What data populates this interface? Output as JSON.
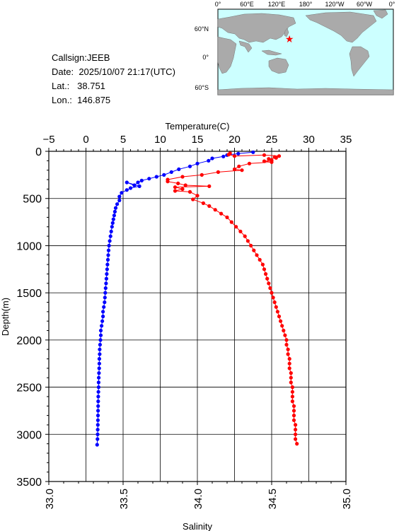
{
  "info": {
    "callsign": "Callsign:JEEB",
    "date_label": "Date:",
    "date_value": "2025/10/07 21:17(UTC)",
    "lat_label": "Lat.:",
    "lat_value": "38.751",
    "lon_label": "Lon.:",
    "lon_value": "146.875"
  },
  "map": {
    "lon_ticks": [
      "0°",
      "60°E",
      "120°E",
      "180°",
      "120°W",
      "60°W",
      "0°"
    ],
    "lat_ticks": [
      "60°N",
      "0°",
      "60°S"
    ],
    "station_marker": {
      "lat": 38.751,
      "lon": 146.875,
      "color": "#ff0000"
    },
    "ocean_color": "#ccffff",
    "land_color": "#aaaaaa"
  },
  "chart_data": {
    "type": "line",
    "top_axis_label": "Temperature(C)",
    "bottom_axis_label": "Salinity",
    "left_axis_label": "Depth(m)",
    "temperature_range": [
      -5,
      35
    ],
    "temperature_ticks": [
      "−5",
      "0",
      "5",
      "10",
      "15",
      "20",
      "25",
      "30",
      "35"
    ],
    "salinity_range": [
      33.0,
      35.0
    ],
    "salinity_ticks": [
      "33.0",
      "33.5",
      "34.0",
      "34.5",
      "35.0"
    ],
    "depth_range": [
      0,
      3500
    ],
    "depth_ticks": [
      "0",
      "500",
      "1000",
      "1500",
      "2000",
      "2500",
      "3000",
      "3500"
    ],
    "grid": true,
    "series": [
      {
        "quantity": "temperature",
        "color": "#0000ff",
        "points": [
          [
            22.5,
            10
          ],
          [
            20.5,
            25
          ],
          [
            19.0,
            40
          ],
          [
            18.5,
            55
          ],
          [
            17.0,
            75
          ],
          [
            16.5,
            100
          ],
          [
            15.0,
            130
          ],
          [
            14.0,
            160
          ],
          [
            12.5,
            190
          ],
          [
            11.5,
            220
          ],
          [
            10.5,
            250
          ],
          [
            9.5,
            270
          ],
          [
            8.5,
            290
          ],
          [
            7.5,
            310
          ],
          [
            7.0,
            330
          ],
          [
            6.5,
            360
          ],
          [
            5.5,
            330
          ],
          [
            7.2,
            370
          ],
          [
            6.0,
            390
          ],
          [
            5.5,
            410
          ],
          [
            4.8,
            440
          ],
          [
            4.5,
            480
          ],
          [
            4.5,
            520
          ],
          [
            4.2,
            560
          ],
          [
            4.0,
            600
          ],
          [
            3.9,
            640
          ],
          [
            3.8,
            680
          ],
          [
            3.7,
            720
          ],
          [
            3.6,
            760
          ],
          [
            3.5,
            800
          ],
          [
            3.4,
            850
          ],
          [
            3.3,
            900
          ],
          [
            3.2,
            950
          ],
          [
            3.1,
            1000
          ],
          [
            3.05,
            1050
          ],
          [
            3.0,
            1100
          ],
          [
            2.95,
            1150
          ],
          [
            2.9,
            1200
          ],
          [
            2.85,
            1250
          ],
          [
            2.8,
            1300
          ],
          [
            2.75,
            1350
          ],
          [
            2.7,
            1400
          ],
          [
            2.65,
            1450
          ],
          [
            2.6,
            1500
          ],
          [
            2.55,
            1550
          ],
          [
            2.5,
            1600
          ],
          [
            2.4,
            1650
          ],
          [
            2.3,
            1700
          ],
          [
            2.3,
            1750
          ],
          [
            2.2,
            1800
          ],
          [
            2.1,
            1850
          ],
          [
            2.0,
            1900
          ],
          [
            2.0,
            1950
          ],
          [
            1.95,
            2000
          ],
          [
            1.9,
            2050
          ],
          [
            1.85,
            2100
          ],
          [
            1.85,
            2150
          ],
          [
            1.8,
            2200
          ],
          [
            1.8,
            2250
          ],
          [
            1.78,
            2300
          ],
          [
            1.75,
            2350
          ],
          [
            1.72,
            2400
          ],
          [
            1.7,
            2450
          ],
          [
            1.7,
            2500
          ],
          [
            1.68,
            2550
          ],
          [
            1.66,
            2600
          ],
          [
            1.65,
            2650
          ],
          [
            1.64,
            2700
          ],
          [
            1.63,
            2750
          ],
          [
            1.62,
            2800
          ],
          [
            1.61,
            2850
          ],
          [
            1.6,
            2900
          ],
          [
            1.58,
            2950
          ],
          [
            1.57,
            3000
          ],
          [
            1.55,
            3050
          ],
          [
            1.5,
            3110
          ]
        ]
      },
      {
        "quantity": "salinity",
        "color": "#ff0000",
        "points": [
          [
            34.22,
            20
          ],
          [
            34.21,
            35
          ],
          [
            34.25,
            50
          ],
          [
            34.45,
            40
          ],
          [
            34.55,
            50
          ],
          [
            34.52,
            60
          ],
          [
            34.53,
            70
          ],
          [
            34.48,
            80
          ],
          [
            34.5,
            95
          ],
          [
            34.45,
            105
          ],
          [
            34.5,
            115
          ],
          [
            34.35,
            130
          ],
          [
            34.28,
            160
          ],
          [
            34.25,
            190
          ],
          [
            34.3,
            200
          ],
          [
            34.14,
            220
          ],
          [
            34.03,
            250
          ],
          [
            33.9,
            270
          ],
          [
            33.8,
            300
          ],
          [
            33.8,
            320
          ],
          [
            33.87,
            340
          ],
          [
            33.92,
            360
          ],
          [
            34.08,
            370
          ],
          [
            33.85,
            380
          ],
          [
            33.9,
            400
          ],
          [
            33.85,
            420
          ],
          [
            33.95,
            430
          ],
          [
            34.0,
            470
          ],
          [
            33.97,
            510
          ],
          [
            34.04,
            550
          ],
          [
            34.08,
            580
          ],
          [
            34.12,
            620
          ],
          [
            34.16,
            660
          ],
          [
            34.2,
            700
          ],
          [
            34.23,
            750
          ],
          [
            34.26,
            800
          ],
          [
            34.29,
            850
          ],
          [
            34.32,
            900
          ],
          [
            34.34,
            950
          ],
          [
            34.36,
            1000
          ],
          [
            34.38,
            1050
          ],
          [
            34.4,
            1100
          ],
          [
            34.42,
            1150
          ],
          [
            34.44,
            1200
          ],
          [
            34.45,
            1250
          ],
          [
            34.46,
            1300
          ],
          [
            34.47,
            1350
          ],
          [
            34.48,
            1400
          ],
          [
            34.49,
            1450
          ],
          [
            34.5,
            1500
          ],
          [
            34.51,
            1550
          ],
          [
            34.52,
            1600
          ],
          [
            34.53,
            1650
          ],
          [
            34.54,
            1700
          ],
          [
            34.55,
            1750
          ],
          [
            34.56,
            1800
          ],
          [
            34.57,
            1850
          ],
          [
            34.58,
            1900
          ],
          [
            34.59,
            1950
          ],
          [
            34.6,
            2000
          ],
          [
            34.6,
            2050
          ],
          [
            34.61,
            2100
          ],
          [
            34.61,
            2150
          ],
          [
            34.62,
            2200
          ],
          [
            34.62,
            2250
          ],
          [
            34.62,
            2300
          ],
          [
            34.63,
            2350
          ],
          [
            34.63,
            2400
          ],
          [
            34.63,
            2450
          ],
          [
            34.64,
            2500
          ],
          [
            34.64,
            2550
          ],
          [
            34.64,
            2600
          ],
          [
            34.64,
            2650
          ],
          [
            34.65,
            2700
          ],
          [
            34.65,
            2750
          ],
          [
            34.65,
            2800
          ],
          [
            34.65,
            2850
          ],
          [
            34.66,
            2900
          ],
          [
            34.66,
            2950
          ],
          [
            34.66,
            3000
          ],
          [
            34.66,
            3050
          ],
          [
            34.67,
            3100
          ]
        ]
      }
    ]
  }
}
